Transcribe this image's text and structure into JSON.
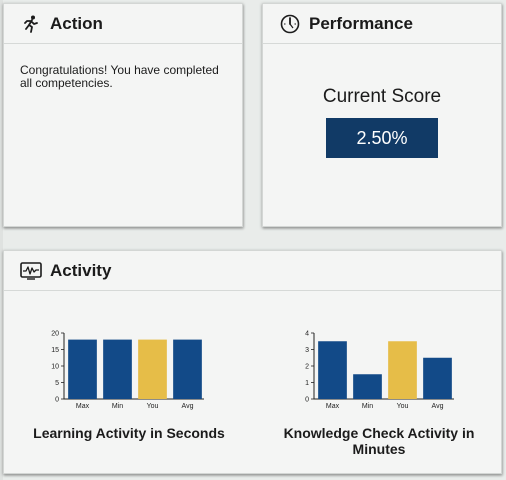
{
  "action": {
    "title": "Action",
    "message": "Congratulations! You have completed all competencies."
  },
  "performance": {
    "title": "Performance",
    "score_label": "Current Score",
    "score_value": "2.50%"
  },
  "activity": {
    "title": "Activity"
  },
  "colors": {
    "primary_bar": "#124a88",
    "you_bar": "#e6bd48",
    "score_bg": "#113a66"
  },
  "chart_data": [
    {
      "type": "bar",
      "title": "Learning Activity in Seconds",
      "categories": [
        "Max",
        "Min",
        "You",
        "Avg"
      ],
      "values": [
        18,
        18,
        18,
        18
      ],
      "ylim": [
        0,
        20
      ],
      "yticks": [
        0,
        5,
        10,
        15,
        20
      ],
      "highlight_category": "You",
      "grid": false
    },
    {
      "type": "bar",
      "title": "Knowledge Check Activity in Minutes",
      "categories": [
        "Max",
        "Min",
        "You",
        "Avg"
      ],
      "values": [
        3.5,
        1.5,
        3.5,
        2.5
      ],
      "ylim": [
        0,
        4
      ],
      "yticks": [
        0,
        1,
        2,
        3,
        4
      ],
      "highlight_category": "You",
      "grid": false
    }
  ]
}
